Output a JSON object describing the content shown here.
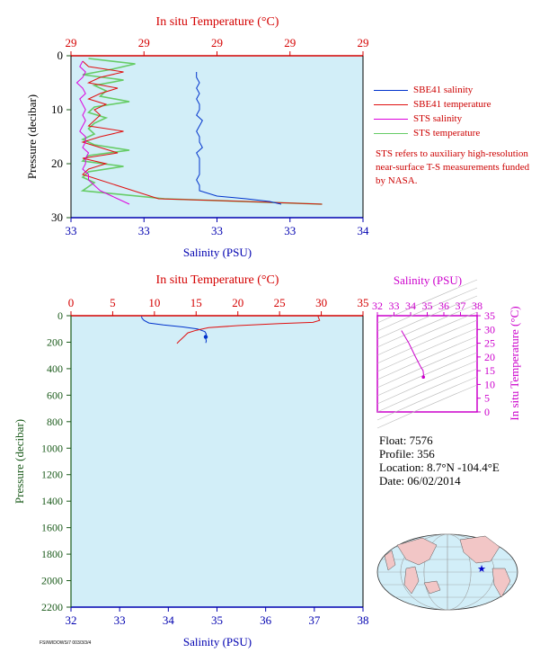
{
  "colors": {
    "temperature_axis": "#d40000",
    "salinity_axis": "#0000b0",
    "pressure_axis": "#1a5a1a",
    "plot_bg": "#d2eef8",
    "sbe41_salinity": "#0033cc",
    "sbe41_temperature": "#e01010",
    "sts_salinity": "#dd00dd",
    "sts_temperature": "#66cc66",
    "ts_axis": "#cc00cc"
  },
  "legend": {
    "items": [
      {
        "label": "SBE41 salinity",
        "color": "#0033cc"
      },
      {
        "label": "SBE41 temperature",
        "color": "#e01010"
      },
      {
        "label": "STS salinity",
        "color": "#dd00dd"
      },
      {
        "label": "STS temperature",
        "color": "#66cc66"
      }
    ],
    "note": "STS refers to auxiliary high-resolution near-surface T-S measurements funded by NASA."
  },
  "info": {
    "float": "Float:  7576",
    "profile": "Profile:  356",
    "location": "Location:  8.7°N  -104.4°E",
    "date": "Date:  06/02/2014"
  },
  "small_print": "FSI/WIDOWS/7 003/3/3/4",
  "chart_data": [
    {
      "type": "line",
      "panel": "near-surface",
      "title_top": "In situ Temperature (°C)",
      "xlabel": "Salinity (PSU)",
      "ylabel": "Pressure (decibar)",
      "top_ticks": [
        "29",
        "29",
        "29",
        "29",
        "29"
      ],
      "bottom_ticks": [
        "33",
        "33",
        "33",
        "33",
        "34"
      ],
      "y_ticks": [
        0,
        10,
        20,
        30
      ],
      "ylim": [
        0,
        30
      ],
      "salinity_range": [
        33.0,
        34.0
      ],
      "temperature_range": [
        28.9,
        29.4
      ],
      "series": [
        {
          "name": "SBE41 salinity",
          "x": [
            33.43,
            33.43,
            33.44,
            33.43,
            33.44,
            33.43,
            33.44,
            33.44,
            33.43,
            33.45,
            33.44,
            33.43,
            33.44,
            33.44,
            33.45,
            33.43,
            33.44,
            33.44,
            33.44,
            33.44,
            33.43,
            33.44,
            33.44,
            33.5,
            33.6,
            33.68,
            33.72
          ],
          "y": [
            3,
            4,
            5,
            6,
            7,
            8,
            9,
            10,
            11,
            12,
            13,
            14,
            15,
            16,
            17,
            18,
            19,
            20,
            21,
            22,
            23,
            24,
            25,
            26,
            26.5,
            27,
            27.5
          ]
        },
        {
          "name": "SBE41 temperature",
          "x": [
            28.92,
            28.93,
            28.99,
            28.95,
            28.93,
            28.98,
            28.95,
            28.93,
            28.96,
            28.94,
            28.95,
            28.94,
            28.93,
            28.99,
            28.95,
            28.92,
            28.95,
            28.98,
            28.92,
            28.96,
            28.93,
            28.92,
            29.05,
            29.2,
            29.33
          ],
          "y": [
            1,
            2,
            3,
            4,
            5,
            6,
            7,
            8,
            9,
            10,
            11,
            12,
            13,
            14,
            15,
            16,
            17,
            18,
            19,
            20,
            21,
            22,
            26.5,
            27,
            27.5
          ]
        },
        {
          "name": "STS salinity",
          "x": [
            33.04,
            33.03,
            33.05,
            33.04,
            33.02,
            33.04,
            33.05,
            33.03,
            33.04,
            33.05,
            33.04,
            33.05,
            33.04,
            33.03,
            33.05,
            33.05,
            33.04,
            33.06,
            33.05,
            33.05,
            33.04,
            33.06,
            33.06,
            33.08,
            33.1,
            33.14,
            33.2
          ],
          "y": [
            1,
            2,
            3,
            4,
            5,
            6,
            7,
            8,
            9,
            10,
            11,
            12,
            13,
            14,
            15,
            16,
            17,
            18,
            19,
            20,
            21,
            22,
            23,
            24,
            25,
            26,
            27.5
          ]
        },
        {
          "name": "STS temperature",
          "x": [
            28.93,
            29.01,
            28.97,
            28.92,
            28.99,
            28.94,
            28.96,
            28.95,
            29.0,
            28.94,
            28.93,
            28.96,
            28.94,
            28.93,
            28.94,
            28.92,
            28.94,
            29.0,
            28.93,
            28.92,
            28.99,
            28.93,
            28.92,
            28.94,
            28.92,
            29.06,
            29.33
          ],
          "y": [
            0.5,
            1.5,
            2.5,
            3.5,
            4.5,
            5.5,
            6.5,
            7.5,
            8.5,
            9.5,
            10.5,
            11.5,
            12.5,
            13.5,
            14.5,
            15.5,
            16.5,
            17.5,
            18.5,
            19.5,
            20.5,
            21.5,
            22.5,
            23.5,
            25,
            26.5,
            27.5
          ]
        }
      ]
    },
    {
      "type": "line",
      "panel": "full-profile",
      "title_top": "In situ Temperature (°C)",
      "xlabel": "Salinity (PSU)",
      "ylabel": "Pressure (decibar)",
      "temperature_ticks": [
        0,
        5,
        10,
        15,
        20,
        25,
        30,
        35
      ],
      "salinity_ticks": [
        32,
        33,
        34,
        35,
        36,
        37,
        38
      ],
      "pressure_ticks": [
        0,
        200,
        400,
        600,
        800,
        1000,
        1200,
        1400,
        1600,
        1800,
        2000,
        2200
      ],
      "ylim": [
        0,
        2200
      ],
      "temperature_range": [
        0,
        35
      ],
      "salinity_range": [
        32,
        38
      ],
      "series": [
        {
          "name": "SBE41 salinity",
          "x": [
            33.45,
            33.46,
            33.5,
            33.6,
            33.9,
            34.3,
            34.6,
            34.75,
            34.78,
            34.76,
            34.78,
            34.77
          ],
          "y": [
            5,
            20,
            35,
            55,
            70,
            85,
            100,
            120,
            140,
            160,
            190,
            205
          ]
        },
        {
          "name": "SBE41 temperature",
          "x": [
            29.6,
            29.7,
            29.8,
            29.0,
            25.0,
            20.0,
            16.5,
            15.0,
            14.0,
            13.5,
            13.0,
            12.7
          ],
          "y": [
            5,
            20,
            35,
            50,
            60,
            75,
            90,
            110,
            130,
            160,
            190,
            210
          ]
        }
      ]
    },
    {
      "type": "line",
      "panel": "T-S diagram",
      "title_top": "Salinity (PSU)",
      "ylabel": "In situ Temperature (°C)",
      "salinity_ticks": [
        32,
        33,
        34,
        35,
        36,
        37,
        38
      ],
      "temperature_ticks": [
        0,
        5,
        10,
        15,
        20,
        25,
        30,
        35
      ],
      "series": [
        {
          "name": "SBE41",
          "x": [
            33.45,
            33.5,
            33.9,
            34.3,
            34.6,
            34.75,
            34.78,
            34.77
          ],
          "y": [
            29.6,
            29.0,
            25.0,
            20.0,
            16.5,
            15.0,
            13.5,
            12.7
          ]
        }
      ]
    }
  ]
}
